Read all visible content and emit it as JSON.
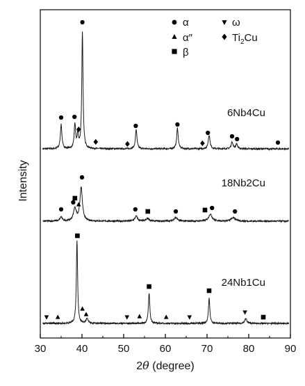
{
  "chart_data": {
    "type": "line",
    "xlabel": {
      "pre": "2",
      "italic": "θ",
      "post": " (degree)"
    },
    "ylabel": "Intensity",
    "xlim": [
      30,
      90
    ],
    "xticks": [
      "30",
      "40",
      "50",
      "60",
      "70",
      "80",
      "90"
    ],
    "legend": {
      "placement": "top-right",
      "entries": [
        {
          "symbol": "circle",
          "label": "α"
        },
        {
          "symbol": "triangle-down",
          "label": "ω"
        },
        {
          "symbol": "triangle-up",
          "label": "α″"
        },
        {
          "symbol": "diamond",
          "label": "Ti",
          "sub": "2",
          "after": "Cu"
        },
        {
          "symbol": "square",
          "label": "β"
        }
      ]
    },
    "series": [
      {
        "name": "6Nb4Cu",
        "baseline": 0,
        "peaks": [
          {
            "x": 35.0,
            "y": 35,
            "w": 0.22
          },
          {
            "x": 38.3,
            "y": 35,
            "w": 0.2
          },
          {
            "x": 39.0,
            "y": 20,
            "w": 0.2
          },
          {
            "x": 40.1,
            "y": 168,
            "w": 0.18
          },
          {
            "x": 53.0,
            "y": 28,
            "w": 0.22
          },
          {
            "x": 62.9,
            "y": 30,
            "w": 0.22
          },
          {
            "x": 70.5,
            "y": 20,
            "w": 0.25
          },
          {
            "x": 76.0,
            "y": 10,
            "w": 0.25
          },
          {
            "x": 77.1,
            "y": 7,
            "w": 0.25
          }
        ],
        "markers": [
          {
            "x": 35.0,
            "y": 45,
            "symbol": "circle"
          },
          {
            "x": 38.2,
            "y": 46,
            "symbol": "circle"
          },
          {
            "x": 39.2,
            "y": 28,
            "symbol": "diamond"
          },
          {
            "x": 40.1,
            "y": 182,
            "symbol": "circle"
          },
          {
            "x": 43.3,
            "y": 10,
            "symbol": "diamond"
          },
          {
            "x": 50.9,
            "y": 7,
            "symbol": "diamond"
          },
          {
            "x": 52.9,
            "y": 33,
            "symbol": "circle"
          },
          {
            "x": 62.9,
            "y": 35,
            "symbol": "circle"
          },
          {
            "x": 68.9,
            "y": 8,
            "symbol": "diamond"
          },
          {
            "x": 70.2,
            "y": 23,
            "symbol": "circle"
          },
          {
            "x": 76.0,
            "y": 18,
            "symbol": "circle"
          },
          {
            "x": 77.2,
            "y": 14,
            "symbol": "circle"
          },
          {
            "x": 87.0,
            "y": 9,
            "symbol": "circle"
          }
        ]
      },
      {
        "name": "18Nb2Cu",
        "baseline": 0,
        "peaks": [
          {
            "x": 35.0,
            "y": 6,
            "w": 0.3
          },
          {
            "x": 38.3,
            "y": 18,
            "w": 0.4
          },
          {
            "x": 39.8,
            "y": 48,
            "w": 0.35
          },
          {
            "x": 53.0,
            "y": 7,
            "w": 0.4
          },
          {
            "x": 55.8,
            "y": 4,
            "w": 0.4
          },
          {
            "x": 62.5,
            "y": 5,
            "w": 0.5
          },
          {
            "x": 70.8,
            "y": 10,
            "w": 0.5
          },
          {
            "x": 76.3,
            "y": 5,
            "w": 0.6
          }
        ],
        "markers": [
          {
            "x": 35.0,
            "y": 17,
            "symbol": "circle"
          },
          {
            "x": 37.9,
            "y": 27,
            "symbol": "circle"
          },
          {
            "x": 38.3,
            "y": 33,
            "symbol": "square"
          },
          {
            "x": 39.2,
            "y": 24,
            "symbol": "triangle-up"
          },
          {
            "x": 40.0,
            "y": 63,
            "symbol": "circle"
          },
          {
            "x": 52.8,
            "y": 17,
            "symbol": "circle"
          },
          {
            "x": 55.8,
            "y": 14,
            "symbol": "square"
          },
          {
            "x": 62.5,
            "y": 14,
            "symbol": "circle"
          },
          {
            "x": 69.5,
            "y": 16,
            "symbol": "square"
          },
          {
            "x": 71.2,
            "y": 19,
            "symbol": "circle"
          },
          {
            "x": 76.7,
            "y": 14,
            "symbol": "circle"
          }
        ]
      },
      {
        "name": "24Nb1Cu",
        "baseline": 0,
        "peaks": [
          {
            "x": 38.8,
            "y": 120,
            "w": 0.18
          },
          {
            "x": 41.2,
            "y": 7,
            "w": 0.3
          },
          {
            "x": 56.1,
            "y": 44,
            "w": 0.2
          },
          {
            "x": 70.5,
            "y": 36,
            "w": 0.2
          },
          {
            "x": 79.3,
            "y": 7,
            "w": 0.3
          }
        ],
        "markers": [
          {
            "x": 31.5,
            "y": 9,
            "symbol": "triangle-down"
          },
          {
            "x": 34.2,
            "y": 9,
            "symbol": "triangle-up"
          },
          {
            "x": 38.9,
            "y": 126,
            "symbol": "square"
          },
          {
            "x": 40.1,
            "y": 21,
            "symbol": "triangle-up"
          },
          {
            "x": 41.0,
            "y": 13,
            "symbol": "triangle-up"
          },
          {
            "x": 50.8,
            "y": 9,
            "symbol": "triangle-down"
          },
          {
            "x": 53.8,
            "y": 10,
            "symbol": "triangle-up"
          },
          {
            "x": 56.1,
            "y": 53,
            "symbol": "square"
          },
          {
            "x": 60.2,
            "y": 9,
            "symbol": "triangle-up"
          },
          {
            "x": 65.8,
            "y": 9,
            "symbol": "triangle-down"
          },
          {
            "x": 70.5,
            "y": 47,
            "symbol": "square"
          },
          {
            "x": 79.1,
            "y": 16,
            "symbol": "triangle-down"
          },
          {
            "x": 83.5,
            "y": 9,
            "symbol": "square"
          }
        ]
      }
    ]
  }
}
